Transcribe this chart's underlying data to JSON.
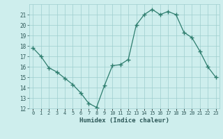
{
  "x": [
    0,
    1,
    2,
    3,
    4,
    5,
    6,
    7,
    8,
    9,
    10,
    11,
    12,
    13,
    14,
    15,
    16,
    17,
    18,
    19,
    20,
    21,
    22,
    23
  ],
  "y": [
    17.8,
    17.0,
    15.9,
    15.5,
    14.9,
    14.3,
    13.5,
    12.5,
    12.1,
    14.2,
    16.1,
    16.2,
    16.7,
    20.0,
    21.0,
    21.5,
    21.0,
    21.3,
    21.0,
    19.3,
    18.8,
    17.5,
    16.0,
    15.0
  ],
  "xlabel": "Humidex (Indice chaleur)",
  "xlim": [
    -0.5,
    23.5
  ],
  "ylim": [
    12,
    22
  ],
  "yticks": [
    12,
    13,
    14,
    15,
    16,
    17,
    18,
    19,
    20,
    21
  ],
  "xtick_labels": [
    "0",
    "1",
    "2",
    "3",
    "4",
    "5",
    "6",
    "7",
    "8",
    "9",
    "10",
    "11",
    "12",
    "13",
    "14",
    "15",
    "16",
    "17",
    "18",
    "19",
    "20",
    "21",
    "22",
    "23"
  ],
  "line_color": "#2e7d6e",
  "bg_color": "#ceeeed",
  "grid_color": "#9ecece",
  "tick_label_color": "#2d5858",
  "xlabel_color": "#2d5858"
}
